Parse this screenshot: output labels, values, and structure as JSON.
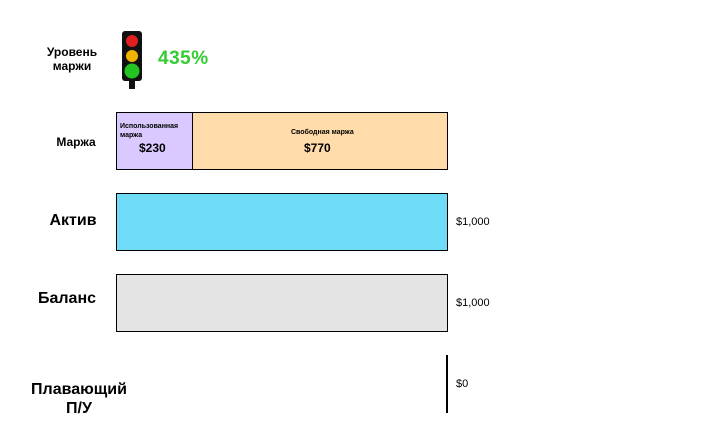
{
  "margin_level": {
    "label": "Уровень маржи",
    "value": "435%",
    "indicator_icon": "traffic-light-icon",
    "colors": {
      "red": "#e01f1f",
      "yellow": "#f0b400",
      "green": "#22c522",
      "value_text": "#33cc33"
    }
  },
  "margin": {
    "label": "Маржа",
    "used": {
      "caption": "Использованная маржа",
      "value": "$230",
      "color": "#d9c9ff"
    },
    "free": {
      "caption": "Свободная маржа",
      "value": "$770",
      "color": "#ffdcaa"
    }
  },
  "equity": {
    "label": "Актив",
    "value": "$1,000",
    "color": "#6fdcf7"
  },
  "balance": {
    "label": "Баланс",
    "value": "$1,000",
    "color": "#e4e4e4"
  },
  "floating_pl": {
    "label": "Плавающий П/У",
    "value": "$0"
  }
}
